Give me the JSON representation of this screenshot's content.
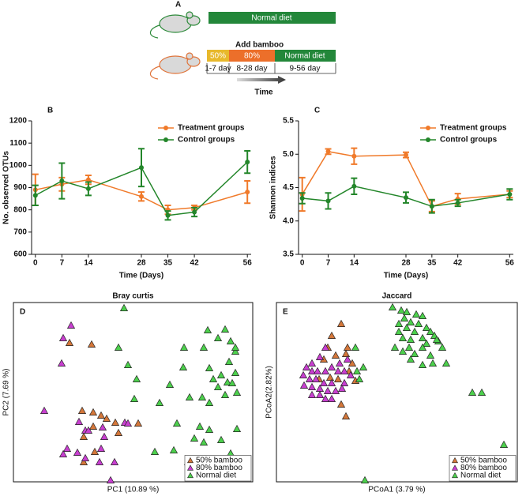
{
  "diagram": {
    "label": "A",
    "top_bar": "Normal diet",
    "add": "Add bamboo",
    "seg1": "50%",
    "seg2": "80%",
    "seg3": "Normal diet",
    "day1": "1-7 day",
    "day2": "8-28 day",
    "day3": "9-56 day",
    "time": "Time"
  },
  "chart_data": [
    {
      "type": "line",
      "panel_label": "B",
      "x_label": "Time (Days)",
      "y_label": "No. observed OTUs",
      "x": [
        0,
        7,
        14,
        28,
        35,
        42,
        56
      ],
      "xlim": [
        -1,
        57
      ],
      "xticks": [
        0,
        7,
        14,
        28,
        35,
        42,
        56
      ],
      "ylim": [
        600,
        1200
      ],
      "yticks": [
        600,
        700,
        800,
        900,
        1000,
        1100,
        1200
      ],
      "legend": "upper right",
      "series": [
        {
          "name": "Treatment groups",
          "color": "#f07a2a",
          "values": [
            890,
            915,
            935,
            860,
            800,
            810,
            880
          ],
          "errors": [
            70,
            30,
            20,
            20,
            20,
            10,
            50
          ]
        },
        {
          "name": "Control groups",
          "color": "#23862a",
          "values": [
            865,
            930,
            895,
            990,
            775,
            790,
            1015
          ],
          "errors": [
            45,
            80,
            30,
            85,
            20,
            20,
            50
          ]
        }
      ]
    },
    {
      "type": "line",
      "panel_label": "C",
      "x_label": "Time (Days)",
      "y_label": "Shannon indices",
      "x": [
        0,
        7,
        14,
        28,
        35,
        42,
        56
      ],
      "xlim": [
        -1,
        57
      ],
      "xticks": [
        0,
        7,
        14,
        28,
        35,
        42,
        56
      ],
      "ylim": [
        3.5,
        5.5
      ],
      "yticks": [
        3.5,
        {
          "value": 4,
          "label": "4.0"
        },
        4.5,
        {
          "value": 5,
          "label": "5.0"
        },
        5.5
      ],
      "legend": "upper right",
      "series": [
        {
          "name": "Treatment groups",
          "color": "#f07a2a",
          "values": [
            4.4,
            5.04,
            4.97,
            4.99,
            4.22,
            4.33,
            4.4
          ],
          "errors": [
            0.25,
            0.04,
            0.12,
            0.04,
            0.08,
            0.08,
            0.05
          ]
        },
        {
          "name": "Control groups",
          "color": "#23862a",
          "values": [
            4.34,
            4.3,
            4.52,
            4.35,
            4.22,
            4.27,
            4.4
          ],
          "errors": [
            0.08,
            0.12,
            0.12,
            0.08,
            0.1,
            0.05,
            0.08
          ]
        }
      ]
    },
    {
      "type": "scatter",
      "panel_label": "D",
      "title": "Bray curtis",
      "x_label": "PC1 (10.89 %)",
      "y_label": "PC2 (7.69 %)",
      "xlim": [
        0,
        303
      ],
      "ylim": [
        0,
        227
      ],
      "legend": "lower right",
      "series": [
        {
          "name": "50% bamboo",
          "color": "#d4773a",
          "x": [
            71,
            99,
            87,
            101,
            111,
            118,
            101,
            129,
            89,
            103,
            89,
            158,
            133
          ],
          "values": [
            176,
            174,
            90,
            88,
            84,
            80,
            70,
            75,
            57,
            38,
            25,
            74,
            62
          ]
        },
        {
          "name": "80% bamboo",
          "color": "#c83fd0",
          "x": [
            73,
            63,
            61,
            39,
            83,
            91,
            113,
            115,
            141,
            145,
            68,
            63,
            81,
            91,
            109,
            128,
            123,
            95,
            111
          ],
          "values": [
            198,
            182,
            150,
            90,
            76,
            65,
            69,
            57,
            75,
            74,
            42,
            35,
            37,
            30,
            25,
            25,
            2,
            65,
            42
          ]
        },
        {
          "name": "Normal diet",
          "color": "#4cd04c",
          "x": [
            140,
            133,
            145,
            153,
            185,
            156,
            198,
            216,
            215,
            223,
            207,
            236,
            229,
            248,
            241,
            263,
            246,
            259,
            275,
            248,
            273,
            271,
            277,
            281,
            263,
            281,
            281,
            253,
            268,
            248,
            221,
            243,
            275,
            259,
            283,
            241,
            268,
            179,
            203,
            239,
            283
          ],
          "values": [
            220,
            170,
            148,
            105,
            100,
            130,
            123,
            170,
            145,
            107,
            74,
            70,
            55,
            66,
            50,
            53,
            192,
            182,
            178,
            144,
            152,
            126,
            125,
            138,
            135,
            165,
            170,
            130,
            110,
            100,
            25,
            27,
            36,
            120,
            113,
            170,
            193,
            38,
            40,
            107,
            67
          ]
        }
      ]
    },
    {
      "type": "scatter",
      "panel_label": "E",
      "title": "Jaccard",
      "x_label": "PCoA1 (3.79 %)",
      "y_label": "PCoA2(2.82%)",
      "xlim": [
        0,
        305
      ],
      "ylim": [
        0,
        227
      ],
      "legend": "lower right",
      "series": [
        {
          "name": "50% bamboo",
          "color": "#d4773a",
          "x": [
            82,
            70,
            90,
            88,
            96,
            60,
            54,
            68,
            78,
            92,
            100,
            82,
            88,
            75,
            65
          ],
          "values": [
            200,
            185,
            170,
            162,
            150,
            155,
            130,
            132,
            130,
            140,
            128,
            98,
            83,
            160,
            170
          ]
        },
        {
          "name": "80% bamboo",
          "color": "#c83fd0",
          "x": [
            62,
            55,
            45,
            45,
            52,
            62,
            70,
            78,
            86,
            34,
            42,
            50,
            60,
            70,
            80,
            35,
            45,
            55,
            65,
            45,
            55,
            62,
            75,
            86,
            94,
            83,
            70,
            38,
            90
          ],
          "values": [
            170,
            158,
            150,
            140,
            140,
            140,
            145,
            140,
            140,
            135,
            130,
            130,
            125,
            125,
            150,
            122,
            120,
            118,
            115,
            110,
            110,
            105,
            115,
            125,
            135,
            118,
            105,
            145,
            155
          ]
        },
        {
          "name": "Normal diet",
          "color": "#4cd04c",
          "x": [
            147,
            158,
            165,
            177,
            162,
            170,
            155,
            180,
            185,
            190,
            165,
            155,
            175,
            195,
            160,
            170,
            185,
            200,
            190,
            150,
            168,
            185,
            205,
            195,
            160,
            175,
            210,
            198,
            170,
            215,
            185,
            248,
            260,
            288,
            112,
            100,
            102,
            110,
            105,
            203
          ],
          "values": [
            221,
            217,
            215,
            212,
            207,
            202,
            200,
            200,
            210,
            195,
            195,
            190,
            190,
            190,
            182,
            180,
            182,
            185,
            175,
            170,
            170,
            170,
            178,
            160,
            165,
            162,
            170,
            150,
            155,
            150,
            148,
            113,
            113,
            47,
            2,
            170,
            140,
            145,
            130,
            180
          ]
        }
      ]
    }
  ]
}
